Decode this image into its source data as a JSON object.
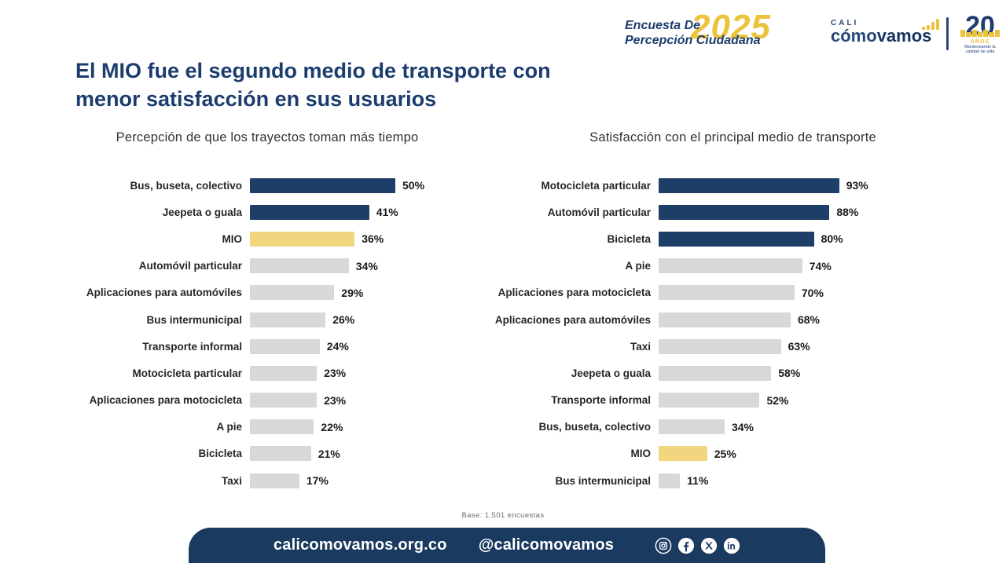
{
  "header": {
    "survey_label_line1": "Encuesta De",
    "survey_label_line2": "Percepción Ciudadana",
    "survey_year": "2025",
    "brand_city": "CALI",
    "brand_name_part1": "cómo",
    "brand_name_part2": "vamos",
    "anniversary_number": "20",
    "anniversary_label": "AÑOS",
    "anniversary_caption": "Monitoreando la calidad de vida"
  },
  "title": "El MIO fue el segundo medio de transporte con menor satisfacción en sus usuarios",
  "colors": {
    "navy": "#1d3e66",
    "yellow": "#f2d57f",
    "gray": "#d8d8d8",
    "title_navy": "#1b3c6d",
    "gold": "#ecc33c",
    "footer_navy": "#1a3a5f"
  },
  "chart_data": [
    {
      "type": "bar",
      "orientation": "horizontal",
      "title": "Percepción de que los trayectos toman más tiempo",
      "unit": "%",
      "xlim": [
        0,
        100
      ],
      "grid": false,
      "legend": false,
      "categories": [
        "Bus, buseta, colectivo",
        "Jeepeta o guala",
        "MIO",
        "Automóvil particular",
        "Aplicaciones para automóviles",
        "Bus intermunicipal",
        "Transporte informal",
        "Motocicleta particular",
        "Aplicaciones para motocicleta",
        "A pie",
        "Bicicleta",
        "Taxi"
      ],
      "values": [
        50,
        41,
        36,
        34,
        29,
        26,
        24,
        23,
        23,
        22,
        21,
        17
      ],
      "value_labels": [
        "50%",
        "41%",
        "36%",
        "34%",
        "29%",
        "26%",
        "24%",
        "23%",
        "23%",
        "22%",
        "21%",
        "17%"
      ],
      "bar_colors": [
        "navy",
        "navy",
        "yellow",
        "gray",
        "gray",
        "gray",
        "gray",
        "gray",
        "gray",
        "gray",
        "gray",
        "gray"
      ]
    },
    {
      "type": "bar",
      "orientation": "horizontal",
      "title": "Satisfacción con el principal medio de transporte",
      "unit": "%",
      "xlim": [
        0,
        100
      ],
      "grid": false,
      "legend": false,
      "categories": [
        "Motocicleta particular",
        "Automóvil particular",
        "Bicicleta",
        "A pie",
        "Aplicaciones para motocicleta",
        "Aplicaciones para automóviles",
        "Taxi",
        "Jeepeta o guala",
        "Transporte informal",
        "Bus, buseta, colectivo",
        "MIO",
        "Bus intermunicipal"
      ],
      "values": [
        93,
        88,
        80,
        74,
        70,
        68,
        63,
        58,
        52,
        34,
        25,
        11
      ],
      "value_labels": [
        "93%",
        "88%",
        "80%",
        "74%",
        "70%",
        "68%",
        "63%",
        "58%",
        "52%",
        "34%",
        "25%",
        "11%"
      ],
      "bar_colors": [
        "navy",
        "navy",
        "navy",
        "gray",
        "gray",
        "gray",
        "gray",
        "gray",
        "gray",
        "gray",
        "yellow",
        "gray"
      ]
    }
  ],
  "footer": {
    "base_note": "Base: 1.501 encuestas",
    "website": "calicomovamos.org.co",
    "handle": "@calicomovamos",
    "social_icons": [
      "instagram",
      "facebook",
      "x",
      "linkedin"
    ]
  }
}
